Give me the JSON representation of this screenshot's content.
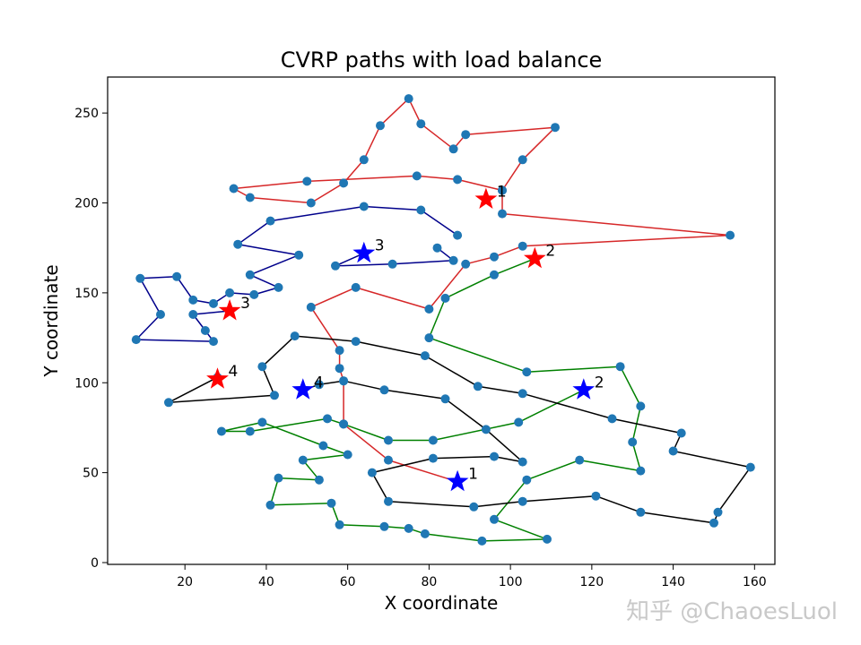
{
  "chart_data": {
    "type": "scatter",
    "title": "CVRP paths with load balance",
    "xlabel": "X coordinate",
    "ylabel": "Y coordinate",
    "xlim": [
      1,
      165
    ],
    "ylim": [
      -1,
      270
    ],
    "x_ticks": [
      20,
      40,
      60,
      80,
      100,
      120,
      140,
      160
    ],
    "y_ticks": [
      0,
      50,
      100,
      150,
      200,
      250
    ],
    "point_color": "#1f77b4",
    "routes": [
      {
        "name": "red",
        "color": "#d62728",
        "points": [
          [
            98,
            207
          ],
          [
            103,
            224
          ],
          [
            111,
            242
          ],
          [
            89,
            238
          ],
          [
            86,
            230
          ],
          [
            78,
            244
          ],
          [
            75,
            258
          ],
          [
            68,
            243
          ],
          [
            64,
            224
          ],
          [
            59,
            211
          ],
          [
            51,
            200
          ],
          [
            36,
            203
          ],
          [
            32,
            208
          ],
          [
            50,
            212
          ],
          [
            77,
            215
          ],
          [
            87,
            213
          ],
          [
            98,
            207
          ],
          [
            98,
            194
          ],
          [
            154,
            182
          ],
          [
            103,
            176
          ],
          [
            96,
            170
          ],
          [
            89,
            166
          ],
          [
            80,
            141
          ],
          [
            62,
            153
          ],
          [
            51,
            142
          ],
          [
            58,
            118
          ],
          [
            58,
            108
          ],
          [
            59,
            101
          ],
          [
            59,
            77
          ],
          [
            70,
            57
          ],
          [
            87,
            45
          ]
        ]
      },
      {
        "name": "blue",
        "color": "#00008b",
        "points": [
          [
            87,
            182
          ],
          [
            78,
            196
          ],
          [
            64,
            198
          ],
          [
            41,
            190
          ],
          [
            33,
            177
          ],
          [
            48,
            171
          ],
          [
            36,
            160
          ],
          [
            43,
            153
          ],
          [
            37,
            149
          ],
          [
            31,
            150
          ],
          [
            27,
            144
          ],
          [
            22,
            146
          ],
          [
            18,
            159
          ],
          [
            9,
            158
          ],
          [
            14,
            138
          ],
          [
            8,
            124
          ],
          [
            27,
            123
          ],
          [
            25,
            129
          ],
          [
            22,
            138
          ],
          [
            31,
            140
          ]
        ]
      },
      {
        "name": "blue-inner",
        "color": "#00008b",
        "points": [
          [
            64,
            172
          ],
          [
            57,
            165
          ],
          [
            71,
            166
          ],
          [
            86,
            168
          ],
          [
            82,
            175
          ]
        ]
      },
      {
        "name": "green",
        "color": "#008000",
        "points": [
          [
            106,
            169
          ],
          [
            96,
            160
          ],
          [
            84,
            147
          ],
          [
            80,
            125
          ],
          [
            104,
            106
          ],
          [
            127,
            109
          ],
          [
            132,
            87
          ],
          [
            130,
            67
          ],
          [
            132,
            51
          ],
          [
            117,
            57
          ],
          [
            104,
            46
          ],
          [
            96,
            24
          ],
          [
            109,
            13
          ],
          [
            93,
            12
          ],
          [
            79,
            16
          ],
          [
            75,
            19
          ],
          [
            69,
            20
          ],
          [
            58,
            21
          ],
          [
            56,
            33
          ],
          [
            41,
            32
          ],
          [
            43,
            47
          ],
          [
            53,
            46
          ],
          [
            49,
            57
          ],
          [
            60,
            60
          ],
          [
            54,
            65
          ],
          [
            39,
            78
          ],
          [
            29,
            73
          ],
          [
            36,
            73
          ],
          [
            55,
            80
          ],
          [
            59,
            77
          ],
          [
            70,
            68
          ],
          [
            81,
            68
          ],
          [
            102,
            78
          ],
          [
            118,
            96
          ]
        ]
      },
      {
        "name": "black",
        "color": "#000000",
        "points": [
          [
            28,
            103
          ],
          [
            16,
            89
          ],
          [
            42,
            93
          ],
          [
            39,
            109
          ],
          [
            47,
            126
          ],
          [
            62,
            123
          ],
          [
            79,
            115
          ],
          [
            92,
            98
          ],
          [
            103,
            94
          ],
          [
            125,
            80
          ],
          [
            142,
            72
          ],
          [
            140,
            62
          ],
          [
            159,
            53
          ],
          [
            151,
            28
          ],
          [
            150,
            22
          ],
          [
            132,
            28
          ],
          [
            121,
            37
          ],
          [
            103,
            34
          ],
          [
            91,
            31
          ],
          [
            70,
            34
          ],
          [
            66,
            50
          ],
          [
            81,
            58
          ],
          [
            96,
            59
          ],
          [
            103,
            56
          ],
          [
            94,
            74
          ],
          [
            84,
            91
          ],
          [
            69,
            96
          ],
          [
            59,
            101
          ],
          [
            53,
            99
          ],
          [
            49,
            96
          ]
        ]
      }
    ],
    "depots": [
      {
        "label": "1",
        "color": "#ff0000",
        "x": 94,
        "y": 202
      },
      {
        "label": "2",
        "color": "#ff0000",
        "x": 106,
        "y": 169
      },
      {
        "label": "3",
        "color": "#ff0000",
        "x": 31,
        "y": 140
      },
      {
        "label": "4",
        "color": "#ff0000",
        "x": 28,
        "y": 102
      },
      {
        "label": "1",
        "color": "#0000ff",
        "x": 87,
        "y": 45
      },
      {
        "label": "2",
        "color": "#0000ff",
        "x": 118,
        "y": 96
      },
      {
        "label": "3",
        "color": "#0000ff",
        "x": 64,
        "y": 172
      },
      {
        "label": "4",
        "color": "#0000ff",
        "x": 49,
        "y": 96
      }
    ]
  },
  "watermark": {
    "text": "知乎 @ChaoesLuol"
  }
}
